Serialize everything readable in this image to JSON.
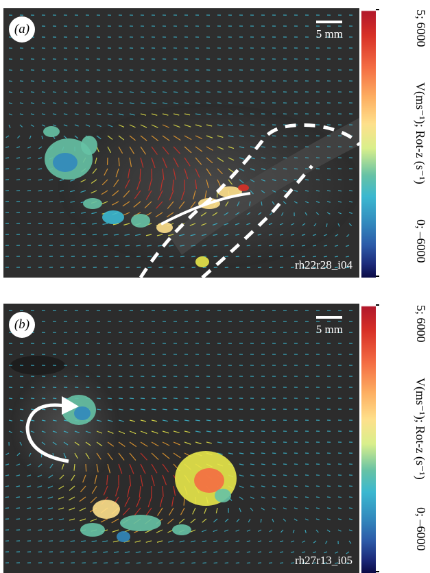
{
  "panels": [
    {
      "label": "(a)",
      "scale_text": "5 mm",
      "run_id": "rh22r28_i04",
      "colorbar": {
        "top_text": "5; 6000",
        "middle_text": "V(ms⁻¹); Rot-z (s⁻¹)",
        "bottom_text": "0; –6000"
      }
    },
    {
      "label": "(b)",
      "scale_text": "5 mm",
      "run_id": "rh27r13_i05",
      "colorbar": {
        "top_text": "5; 6000",
        "middle_text": "V(ms⁻¹); Rot-z (s⁻¹)",
        "bottom_text": "0; –6000"
      }
    }
  ],
  "colors": {
    "background": "#ffffff",
    "vector_low": "#3bb8d0",
    "vector_mid": "#e8e84a",
    "vector_high": "#d73027",
    "overlay": "#ffffff"
  }
}
